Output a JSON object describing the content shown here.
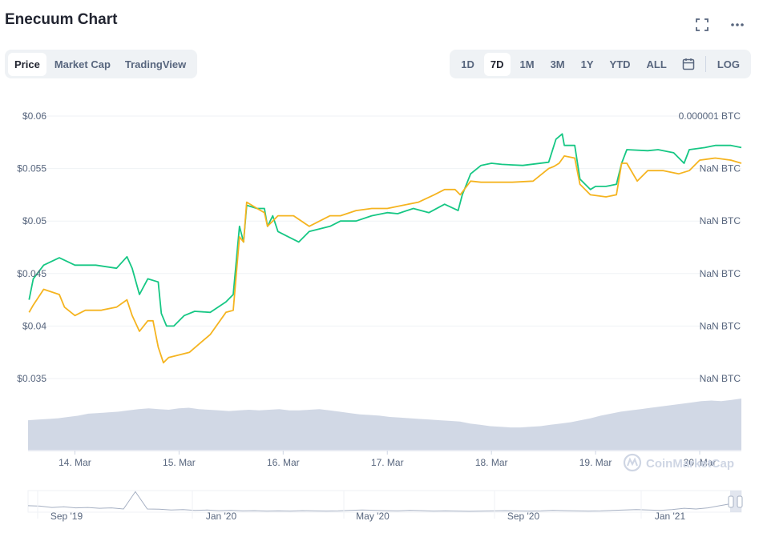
{
  "header": {
    "title": "Enecuum Chart",
    "fullscreen_icon": "expand-icon",
    "more_icon": "more-dots-icon"
  },
  "tabs": [
    {
      "label": "Price",
      "active": true
    },
    {
      "label": "Market Cap",
      "active": false
    },
    {
      "label": "TradingView",
      "active": false
    }
  ],
  "ranges": [
    {
      "label": "1D",
      "active": false
    },
    {
      "label": "7D",
      "active": true
    },
    {
      "label": "1M",
      "active": false
    },
    {
      "label": "3M",
      "active": false
    },
    {
      "label": "1Y",
      "active": false
    },
    {
      "label": "YTD",
      "active": false
    },
    {
      "label": "ALL",
      "active": false
    }
  ],
  "log_label": "LOG",
  "calendar_icon": "calendar-icon",
  "watermark": "CoinMarketCap",
  "colors": {
    "price_usd": "#16c784",
    "price_btc": "#f5b420",
    "volume": "#cfd6e4",
    "grid": "#eff2f5",
    "axis_text": "#58667e",
    "navigator_line": "#a6b0c3"
  },
  "chart_data": {
    "type": "line",
    "y_left": {
      "ticks": [
        "$0.06",
        "$0.055",
        "$0.05",
        "$0.045",
        "$0.04",
        "$0.035"
      ],
      "range": [
        0.035,
        0.06
      ]
    },
    "y_right": {
      "ticks": [
        "0.000001 BTC",
        "NaN BTC",
        "NaN BTC",
        "NaN BTC",
        "NaN BTC",
        "NaN BTC"
      ]
    },
    "x_ticks": [
      "14. Mar",
      "15. Mar",
      "16. Mar",
      "17. Mar",
      "18. Mar",
      "19. Mar",
      "20. Mar"
    ],
    "x_range": [
      13.55,
      20.4
    ],
    "series": [
      {
        "name": "",
        "color": "#16c784",
        "points": [
          [
            13.56,
            0.0425
          ],
          [
            13.6,
            0.0445
          ],
          [
            13.7,
            0.0458
          ],
          [
            13.85,
            0.0465
          ],
          [
            14.0,
            0.0458
          ],
          [
            14.2,
            0.0458
          ],
          [
            14.4,
            0.0455
          ],
          [
            14.5,
            0.0466
          ],
          [
            14.55,
            0.0455
          ],
          [
            14.62,
            0.043
          ],
          [
            14.7,
            0.0445
          ],
          [
            14.8,
            0.0442
          ],
          [
            14.83,
            0.0412
          ],
          [
            14.88,
            0.04
          ],
          [
            14.95,
            0.04
          ],
          [
            15.05,
            0.041
          ],
          [
            15.15,
            0.0414
          ],
          [
            15.3,
            0.0413
          ],
          [
            15.45,
            0.0423
          ],
          [
            15.52,
            0.043
          ],
          [
            15.58,
            0.0495
          ],
          [
            15.62,
            0.048
          ],
          [
            15.65,
            0.0515
          ],
          [
            15.75,
            0.0512
          ],
          [
            15.82,
            0.0512
          ],
          [
            15.85,
            0.0495
          ],
          [
            15.9,
            0.0505
          ],
          [
            15.95,
            0.049
          ],
          [
            16.05,
            0.0485
          ],
          [
            16.15,
            0.048
          ],
          [
            16.25,
            0.049
          ],
          [
            16.45,
            0.0495
          ],
          [
            16.55,
            0.05
          ],
          [
            16.7,
            0.05
          ],
          [
            16.85,
            0.0505
          ],
          [
            17.0,
            0.0508
          ],
          [
            17.1,
            0.0507
          ],
          [
            17.25,
            0.0512
          ],
          [
            17.4,
            0.0508
          ],
          [
            17.55,
            0.0516
          ],
          [
            17.68,
            0.051
          ],
          [
            17.72,
            0.0525
          ],
          [
            17.8,
            0.0545
          ],
          [
            17.9,
            0.0553
          ],
          [
            18.0,
            0.0555
          ],
          [
            18.1,
            0.0554
          ],
          [
            18.3,
            0.0553
          ],
          [
            18.55,
            0.0556
          ],
          [
            18.62,
            0.0578
          ],
          [
            18.68,
            0.0583
          ],
          [
            18.7,
            0.0572
          ],
          [
            18.8,
            0.0572
          ],
          [
            18.85,
            0.054
          ],
          [
            18.95,
            0.053
          ],
          [
            19.0,
            0.0533
          ],
          [
            19.1,
            0.0533
          ],
          [
            19.2,
            0.0535
          ],
          [
            19.25,
            0.0555
          ],
          [
            19.3,
            0.0568
          ],
          [
            19.5,
            0.0567
          ],
          [
            19.6,
            0.0568
          ],
          [
            19.75,
            0.0565
          ],
          [
            19.85,
            0.0555
          ],
          [
            19.9,
            0.0568
          ],
          [
            20.05,
            0.057
          ],
          [
            20.15,
            0.0572
          ],
          [
            20.3,
            0.0572
          ],
          [
            20.4,
            0.057
          ]
        ]
      },
      {
        "name": "",
        "color": "#f5b420",
        "points": [
          [
            13.56,
            0.0413
          ],
          [
            13.6,
            0.042
          ],
          [
            13.7,
            0.0435
          ],
          [
            13.85,
            0.043
          ],
          [
            13.9,
            0.0418
          ],
          [
            14.0,
            0.041
          ],
          [
            14.1,
            0.0415
          ],
          [
            14.25,
            0.0415
          ],
          [
            14.4,
            0.0418
          ],
          [
            14.5,
            0.0425
          ],
          [
            14.55,
            0.041
          ],
          [
            14.62,
            0.0395
          ],
          [
            14.7,
            0.0405
          ],
          [
            14.75,
            0.0405
          ],
          [
            14.8,
            0.038
          ],
          [
            14.85,
            0.0365
          ],
          [
            14.9,
            0.037
          ],
          [
            15.1,
            0.0375
          ],
          [
            15.3,
            0.0392
          ],
          [
            15.45,
            0.0413
          ],
          [
            15.52,
            0.0415
          ],
          [
            15.58,
            0.0485
          ],
          [
            15.62,
            0.048
          ],
          [
            15.65,
            0.0518
          ],
          [
            15.75,
            0.0512
          ],
          [
            15.82,
            0.0508
          ],
          [
            15.85,
            0.0495
          ],
          [
            15.95,
            0.0505
          ],
          [
            16.1,
            0.0505
          ],
          [
            16.25,
            0.0495
          ],
          [
            16.45,
            0.0505
          ],
          [
            16.55,
            0.0505
          ],
          [
            16.7,
            0.051
          ],
          [
            16.85,
            0.0512
          ],
          [
            17.0,
            0.0512
          ],
          [
            17.15,
            0.0515
          ],
          [
            17.3,
            0.0518
          ],
          [
            17.45,
            0.0525
          ],
          [
            17.55,
            0.053
          ],
          [
            17.65,
            0.053
          ],
          [
            17.7,
            0.0525
          ],
          [
            17.8,
            0.0538
          ],
          [
            17.9,
            0.0537
          ],
          [
            18.0,
            0.0537
          ],
          [
            18.2,
            0.0537
          ],
          [
            18.4,
            0.0538
          ],
          [
            18.55,
            0.055
          ],
          [
            18.6,
            0.0552
          ],
          [
            18.65,
            0.0555
          ],
          [
            18.7,
            0.0562
          ],
          [
            18.8,
            0.056
          ],
          [
            18.85,
            0.0535
          ],
          [
            18.95,
            0.0525
          ],
          [
            19.1,
            0.0523
          ],
          [
            19.2,
            0.0525
          ],
          [
            19.25,
            0.0555
          ],
          [
            19.3,
            0.0555
          ],
          [
            19.4,
            0.0538
          ],
          [
            19.5,
            0.0548
          ],
          [
            19.65,
            0.0548
          ],
          [
            19.8,
            0.0545
          ],
          [
            19.9,
            0.0548
          ],
          [
            20.0,
            0.0558
          ],
          [
            20.15,
            0.056
          ],
          [
            20.3,
            0.0558
          ],
          [
            20.4,
            0.0555
          ]
        ]
      }
    ],
    "volume": [
      0.45,
      0.46,
      0.47,
      0.48,
      0.5,
      0.52,
      0.55,
      0.56,
      0.57,
      0.58,
      0.6,
      0.62,
      0.63,
      0.62,
      0.61,
      0.63,
      0.64,
      0.62,
      0.61,
      0.6,
      0.59,
      0.6,
      0.61,
      0.6,
      0.61,
      0.62,
      0.6,
      0.6,
      0.61,
      0.62,
      0.6,
      0.58,
      0.56,
      0.54,
      0.53,
      0.52,
      0.5,
      0.49,
      0.48,
      0.47,
      0.46,
      0.45,
      0.44,
      0.43,
      0.4,
      0.38,
      0.36,
      0.35,
      0.34,
      0.34,
      0.35,
      0.36,
      0.38,
      0.4,
      0.42,
      0.45,
      0.48,
      0.52,
      0.55,
      0.58,
      0.6,
      0.62,
      0.64,
      0.66,
      0.68,
      0.7,
      0.72,
      0.74,
      0.75,
      0.74,
      0.76,
      0.78
    ],
    "volume_range": [
      0,
      1
    ],
    "navigator": {
      "x_ticks": [
        "Sep '19",
        "Jan '20",
        "May '20",
        "Sep '20",
        "Jan '21"
      ],
      "values": [
        0.3,
        0.28,
        0.22,
        0.25,
        0.2,
        0.22,
        0.18,
        0.2,
        0.15,
        0.95,
        0.15,
        0.14,
        0.1,
        0.12,
        0.08,
        0.1,
        0.07,
        0.09,
        0.06,
        0.07,
        0.05,
        0.06,
        0.05,
        0.07,
        0.06,
        0.05,
        0.06,
        0.08,
        0.1,
        0.09,
        0.07,
        0.06,
        0.08,
        0.07,
        0.05,
        0.06,
        0.05,
        0.04,
        0.05,
        0.06,
        0.07,
        0.06,
        0.05,
        0.06,
        0.08,
        0.07,
        0.06,
        0.05,
        0.06,
        0.08,
        0.1,
        0.12,
        0.1,
        0.08,
        0.12,
        0.18,
        0.15,
        0.2,
        0.3,
        0.4
      ],
      "range": [
        0,
        1
      ]
    }
  }
}
